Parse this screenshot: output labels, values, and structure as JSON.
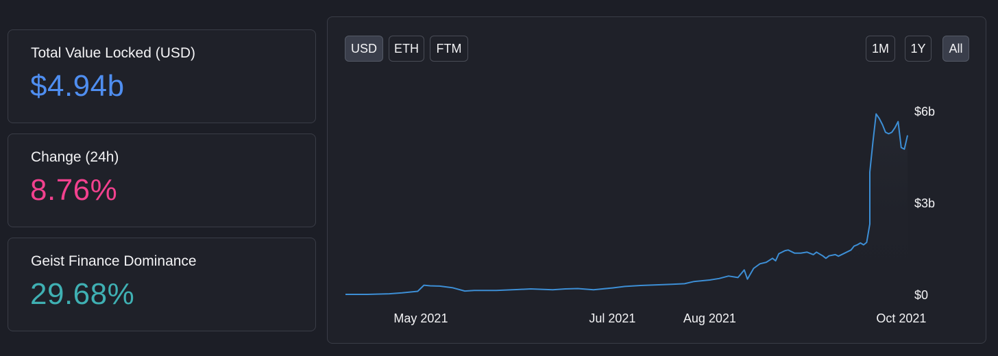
{
  "stats": [
    {
      "label": "Total Value Locked (USD)",
      "value": "$4.94b",
      "color": "#4f8ef0"
    },
    {
      "label": "Change (24h)",
      "value": "8.76%",
      "color": "#f2418e"
    },
    {
      "label": "Geist Finance Dominance",
      "value": "29.68%",
      "color": "#3fb0b3"
    }
  ],
  "currency_buttons": [
    {
      "label": "USD",
      "active": true
    },
    {
      "label": "ETH",
      "active": false
    },
    {
      "label": "FTM",
      "active": false
    }
  ],
  "range_buttons": [
    {
      "label": "1M",
      "active": false
    },
    {
      "label": "1Y",
      "active": false
    },
    {
      "label": "All",
      "active": true
    }
  ],
  "colors": {
    "line": "#3d8fd6",
    "background": "#1c1e26",
    "panel": "#1f2129"
  },
  "chart_data": {
    "type": "area",
    "title": "",
    "xlabel": "",
    "ylabel": "",
    "x_unit": "date",
    "x_range": [
      "2021-04-07",
      "2021-10-03"
    ],
    "ylim": [
      0,
      6.2
    ],
    "y_ticks": [
      {
        "value": 0,
        "label": "$0"
      },
      {
        "value": 3,
        "label": "$3b"
      },
      {
        "value": 6,
        "label": "$6b"
      }
    ],
    "x_ticks": [
      {
        "date": "2021-05-01",
        "label": "May 2021"
      },
      {
        "date": "2021-07-01",
        "label": "Jul 2021"
      },
      {
        "date": "2021-08-01",
        "label": "Aug 2021"
      },
      {
        "date": "2021-10-01",
        "label": "Oct 2021"
      }
    ],
    "grid": false,
    "series": [
      {
        "values": [
          [
            "2021-04-07",
            0.0
          ],
          [
            "2021-04-14",
            0.0
          ],
          [
            "2021-04-21",
            0.02
          ],
          [
            "2021-04-25",
            0.05
          ],
          [
            "2021-04-30",
            0.1
          ],
          [
            "2021-05-02",
            0.3
          ],
          [
            "2021-05-04",
            0.28
          ],
          [
            "2021-05-07",
            0.27
          ],
          [
            "2021-05-11",
            0.22
          ],
          [
            "2021-05-15",
            0.11
          ],
          [
            "2021-05-18",
            0.13
          ],
          [
            "2021-05-25",
            0.13
          ],
          [
            "2021-06-01",
            0.16
          ],
          [
            "2021-06-05",
            0.18
          ],
          [
            "2021-06-12",
            0.15
          ],
          [
            "2021-06-16",
            0.18
          ],
          [
            "2021-06-20",
            0.19
          ],
          [
            "2021-06-25",
            0.15
          ],
          [
            "2021-07-01",
            0.21
          ],
          [
            "2021-07-05",
            0.26
          ],
          [
            "2021-07-10",
            0.29
          ],
          [
            "2021-07-15",
            0.31
          ],
          [
            "2021-07-20",
            0.33
          ],
          [
            "2021-07-24",
            0.35
          ],
          [
            "2021-07-27",
            0.42
          ],
          [
            "2021-08-01",
            0.47
          ],
          [
            "2021-08-04",
            0.52
          ],
          [
            "2021-08-07",
            0.6
          ],
          [
            "2021-08-10",
            0.55
          ],
          [
            "2021-08-12",
            0.8
          ],
          [
            "2021-08-13",
            0.5
          ],
          [
            "2021-08-15",
            0.85
          ],
          [
            "2021-08-17",
            1.0
          ],
          [
            "2021-08-19",
            1.05
          ],
          [
            "2021-08-21",
            1.18
          ],
          [
            "2021-08-22",
            1.1
          ],
          [
            "2021-08-23",
            1.33
          ],
          [
            "2021-08-25",
            1.43
          ],
          [
            "2021-08-26",
            1.45
          ],
          [
            "2021-08-28",
            1.35
          ],
          [
            "2021-08-30",
            1.35
          ],
          [
            "2021-09-01",
            1.38
          ],
          [
            "2021-09-03",
            1.3
          ],
          [
            "2021-09-04",
            1.38
          ],
          [
            "2021-09-06",
            1.26
          ],
          [
            "2021-09-07",
            1.18
          ],
          [
            "2021-09-08",
            1.26
          ],
          [
            "2021-09-10",
            1.3
          ],
          [
            "2021-09-11",
            1.25
          ],
          [
            "2021-09-13",
            1.35
          ],
          [
            "2021-09-15",
            1.45
          ],
          [
            "2021-09-16",
            1.58
          ],
          [
            "2021-09-17",
            1.62
          ],
          [
            "2021-09-18",
            1.68
          ],
          [
            "2021-09-19",
            1.62
          ],
          [
            "2021-09-20",
            1.7
          ],
          [
            "2021-09-21",
            2.3
          ],
          [
            "2021-09-21",
            4.0
          ],
          [
            "2021-09-22",
            5.0
          ],
          [
            "2021-09-23",
            5.9
          ],
          [
            "2021-09-24",
            5.75
          ],
          [
            "2021-09-25",
            5.55
          ],
          [
            "2021-09-26",
            5.3
          ],
          [
            "2021-09-27",
            5.25
          ],
          [
            "2021-09-28",
            5.3
          ],
          [
            "2021-09-29",
            5.45
          ],
          [
            "2021-09-30",
            5.65
          ],
          [
            "2021-10-01",
            4.8
          ],
          [
            "2021-10-02",
            4.75
          ],
          [
            "2021-10-03",
            5.2
          ]
        ]
      }
    ]
  }
}
